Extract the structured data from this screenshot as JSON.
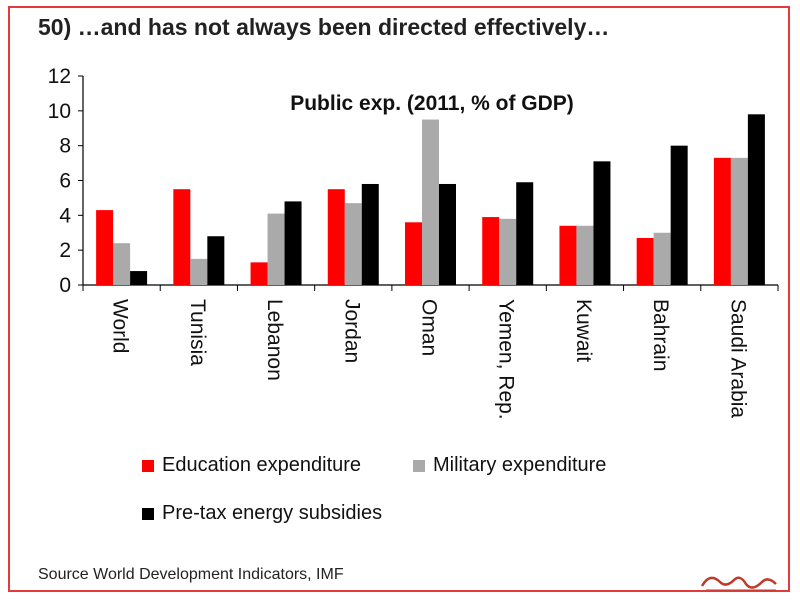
{
  "title": "50) …and has not always been directed effectively…",
  "source": "Source World Development Indicators, IMF",
  "chart_data": {
    "type": "bar",
    "title": "Public exp. (2011, % of GDP)",
    "xlabel": "",
    "ylabel": "",
    "ylim": [
      0,
      12
    ],
    "yticks": [
      0,
      2,
      4,
      6,
      8,
      10,
      12
    ],
    "grid": false,
    "legend_position": "bottom",
    "categories": [
      "World",
      "Tunisia",
      "Lebanon",
      "Jordan",
      "Oman",
      "Yemen, Rep.",
      "Kuwait",
      "Bahrain",
      "Saudi Arabia"
    ],
    "series": [
      {
        "name": "Education expenditure",
        "color": "#ff0000",
        "values": [
          4.3,
          5.5,
          1.3,
          5.5,
          3.6,
          3.9,
          3.4,
          2.7,
          7.3
        ]
      },
      {
        "name": "Military expenditure",
        "color": "#aaaaaa",
        "values": [
          2.4,
          1.5,
          4.1,
          4.7,
          9.5,
          3.8,
          3.4,
          3.0,
          7.3
        ]
      },
      {
        "name": "Pre-tax energy subsidies",
        "color": "#000000",
        "values": [
          0.8,
          2.8,
          4.8,
          5.8,
          5.8,
          5.9,
          7.1,
          8.0,
          9.8
        ]
      }
    ]
  },
  "watermark": {
    "text": "پایگاه خبری تحلیلی صراط",
    "color": "#c0392b"
  }
}
